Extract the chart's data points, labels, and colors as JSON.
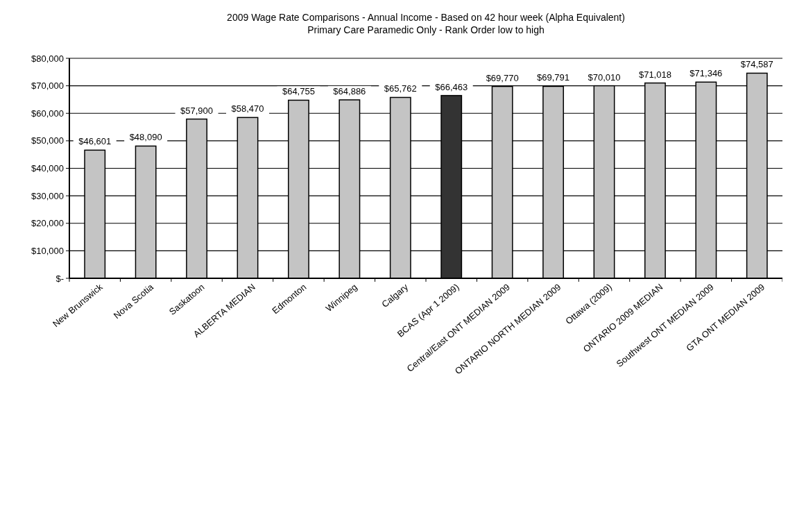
{
  "chart_data": {
    "type": "bar",
    "title": "2009 Wage Rate Comparisons - Annual Income - Based on 42 hour week (Alpha Equivalent)",
    "subtitle": "Primary Care Paramedic Only - Rank Order low to high",
    "categories": [
      "New Brunswick",
      "Nova Scotia",
      "Saskatoon",
      "ALBERTA MEDIAN",
      "Edmonton",
      "Winnipeg",
      "Calgary",
      "BCAS (Apr 1 2009)",
      "Central/East ONT MEDIAN 2009",
      "ONTARIO NORTH MEDIAN 2009",
      "Ottawa (2009)",
      "ONTARIO 2009 MEDIAN",
      "Southwest ONT MEDIAN 2009",
      "GTA ONT MEDIAN 2009"
    ],
    "values": [
      46601,
      48090,
      57900,
      58470,
      64755,
      64886,
      65762,
      66463,
      69770,
      69791,
      70010,
      71018,
      71346,
      74587
    ],
    "value_labels": [
      "$46,601",
      "$48,090",
      "$57,900",
      "$58,470",
      "$64,755",
      "$64,886",
      "$65,762",
      "$66,463",
      "$69,770",
      "$69,791",
      "$70,010",
      "$71,018",
      "$71,346",
      "$74,587"
    ],
    "colors": [
      "#c4c4c4",
      "#c4c4c4",
      "#c4c4c4",
      "#c4c4c4",
      "#c4c4c4",
      "#c4c4c4",
      "#c4c4c4",
      "#333333",
      "#c4c4c4",
      "#c4c4c4",
      "#c4c4c4",
      "#c4c4c4",
      "#c4c4c4",
      "#c4c4c4"
    ],
    "ylim": [
      0,
      80000
    ],
    "yticks": [
      {
        "value": 0,
        "label": "$-"
      },
      {
        "value": 10000,
        "label": "$10,000"
      },
      {
        "value": 20000,
        "label": "$20,000"
      },
      {
        "value": 30000,
        "label": "$30,000"
      },
      {
        "value": 40000,
        "label": "$40,000"
      },
      {
        "value": 50000,
        "label": "$50,000"
      },
      {
        "value": 60000,
        "label": "$60,000"
      },
      {
        "value": 70000,
        "label": "$70,000"
      },
      {
        "value": 80000,
        "label": "$80,000"
      }
    ],
    "grid": "y"
  }
}
